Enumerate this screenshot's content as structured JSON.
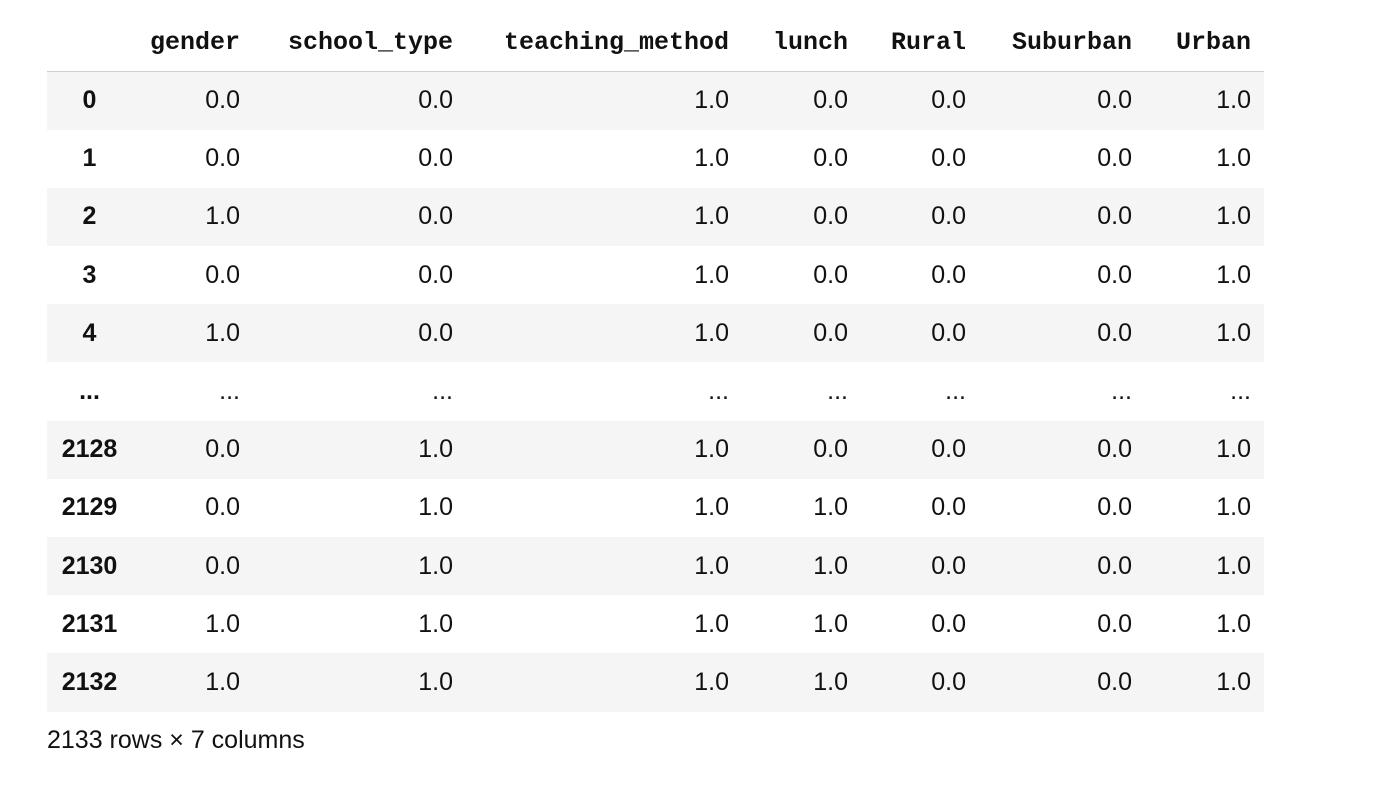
{
  "dataframe": {
    "columns": [
      "gender",
      "school_type",
      "teaching_method",
      "lunch",
      "Rural",
      "Suburban",
      "Urban"
    ],
    "rows": [
      {
        "index": "0",
        "values": [
          "0.0",
          "0.0",
          "1.0",
          "0.0",
          "0.0",
          "0.0",
          "1.0"
        ]
      },
      {
        "index": "1",
        "values": [
          "0.0",
          "0.0",
          "1.0",
          "0.0",
          "0.0",
          "0.0",
          "1.0"
        ]
      },
      {
        "index": "2",
        "values": [
          "1.0",
          "0.0",
          "1.0",
          "0.0",
          "0.0",
          "0.0",
          "1.0"
        ]
      },
      {
        "index": "3",
        "values": [
          "0.0",
          "0.0",
          "1.0",
          "0.0",
          "0.0",
          "0.0",
          "1.0"
        ]
      },
      {
        "index": "4",
        "values": [
          "1.0",
          "0.0",
          "1.0",
          "0.0",
          "0.0",
          "0.0",
          "1.0"
        ]
      },
      {
        "index": "...",
        "values": [
          "...",
          "...",
          "...",
          "...",
          "...",
          "...",
          "..."
        ]
      },
      {
        "index": "2128",
        "values": [
          "0.0",
          "1.0",
          "1.0",
          "0.0",
          "0.0",
          "0.0",
          "1.0"
        ]
      },
      {
        "index": "2129",
        "values": [
          "0.0",
          "1.0",
          "1.0",
          "1.0",
          "0.0",
          "0.0",
          "1.0"
        ]
      },
      {
        "index": "2130",
        "values": [
          "0.0",
          "1.0",
          "1.0",
          "1.0",
          "0.0",
          "0.0",
          "1.0"
        ]
      },
      {
        "index": "2131",
        "values": [
          "1.0",
          "1.0",
          "1.0",
          "1.0",
          "0.0",
          "0.0",
          "1.0"
        ]
      },
      {
        "index": "2132",
        "values": [
          "1.0",
          "1.0",
          "1.0",
          "1.0",
          "0.0",
          "0.0",
          "1.0"
        ]
      }
    ],
    "shape_caption": "2133 rows × 7 columns"
  }
}
